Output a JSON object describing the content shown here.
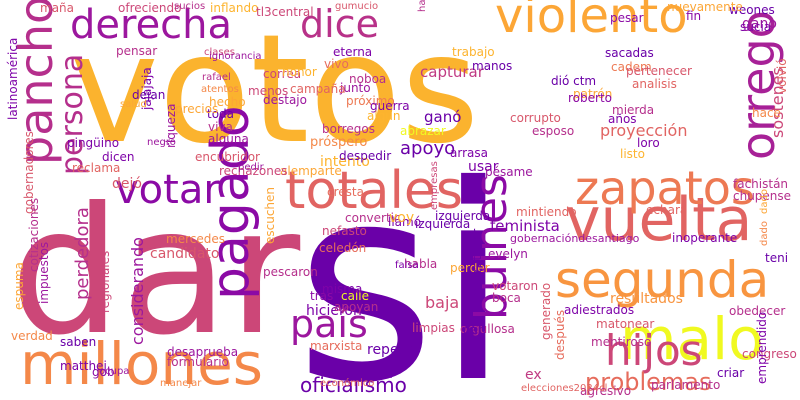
{
  "words": [
    {
      "text": "votos",
      "color": "#fbb32e"
    },
    {
      "text": "si",
      "color": "#6a00a8"
    },
    {
      "text": "dar",
      "color": "#cc4778"
    },
    {
      "text": "totales",
      "color": "#e16462"
    },
    {
      "text": "millones",
      "color": "#f48849"
    },
    {
      "text": "votar",
      "color": "#8b0aa5"
    },
    {
      "text": "violento",
      "color": "#fca636"
    },
    {
      "text": "derecha",
      "color": "#9c179e"
    },
    {
      "text": "dice",
      "color": "#b83289"
    },
    {
      "text": "vuelta",
      "color": "#e16462"
    },
    {
      "text": "segunda",
      "color": "#f89540"
    },
    {
      "text": "pancho",
      "color": "#b52f8c"
    },
    {
      "text": "zapatos",
      "color": "#ed7953"
    },
    {
      "text": "orrego",
      "color": "#a72197"
    },
    {
      "text": "malo",
      "color": "#f0f921"
    },
    {
      "text": "hijos",
      "color": "#cc4778"
    },
    {
      "text": "pagado",
      "color": "#8b0aa5"
    },
    {
      "text": "país",
      "color": "#9c179e"
    },
    {
      "text": "bulnes",
      "color": "#8b0aa5"
    },
    {
      "text": "persona",
      "color": "#b52f8c"
    },
    {
      "text": "problemas",
      "color": "#e66c5c"
    },
    {
      "text": "oficialismo",
      "color": "#6a00a8"
    },
    {
      "text": "perdedora",
      "color": "#b52f8c"
    },
    {
      "text": "feminista",
      "color": "#7e03a8"
    },
    {
      "text": "resultados",
      "color": "#f89540"
    },
    {
      "text": "candidato",
      "color": "#d8576b"
    },
    {
      "text": "proyección",
      "color": "#e16462"
    },
    {
      "text": "capturar",
      "color": "#c03a83"
    },
    {
      "text": "apoyo",
      "color": "#6a00a8"
    },
    {
      "text": "intento",
      "color": "#fdb42f"
    },
    {
      "text": "sostenes",
      "color": "#cc4778"
    },
    {
      "text": "considerando",
      "color": "#9c179e"
    },
    {
      "text": "ganó",
      "color": "#6a00a8"
    },
    {
      "text": "dejó",
      "color": "#d8576b"
    },
    {
      "text": "usar",
      "color": "#7e03a8"
    },
    {
      "text": "baja",
      "color": "#cc4778"
    },
    {
      "text": "tras",
      "color": "#8b0aa5"
    },
    {
      "text": "calle",
      "color": "#f0f921"
    },
    {
      "text": "hicieron",
      "color": "#7e03a8"
    },
    {
      "text": "apoyan",
      "color": "#b52f8c"
    },
    {
      "text": "repetir",
      "color": "#6a00a8"
    },
    {
      "text": "iba",
      "color": "#6a00a8"
    },
    {
      "text": "ex",
      "color": "#c03a83"
    },
    {
      "text": "agresivo",
      "color": "#b52f8c"
    },
    {
      "text": "congreso",
      "color": "#cc4778"
    },
    {
      "text": "obedecer",
      "color": "#b52f8c"
    },
    {
      "text": "mentiroso",
      "color": "#b52f8c"
    },
    {
      "text": "adiestrados",
      "color": "#7e03a8"
    },
    {
      "text": "matonear",
      "color": "#d8576b"
    },
    {
      "text": "orgullosa",
      "color": "#b52f8c"
    },
    {
      "text": "cresta",
      "color": "#e66c5c"
    },
    {
      "text": "alemparte",
      "color": "#fca636"
    },
    {
      "text": "pésame",
      "color": "#9c179e"
    },
    {
      "text": "arrasa",
      "color": "#7e03a8"
    },
    {
      "text": "esposo",
      "color": "#b52f8c"
    },
    {
      "text": "abrazar",
      "color": "#f0f921"
    },
    {
      "text": "borregos",
      "color": "#b52f8c"
    },
    {
      "text": "próspero",
      "color": "#f48849"
    },
    {
      "text": "despedir",
      "color": "#6a00a8"
    },
    {
      "text": "loro",
      "color": "#7e03a8"
    },
    {
      "text": "listo",
      "color": "#fdb42f"
    },
    {
      "text": "años",
      "color": "#7e03a8"
    },
    {
      "text": "hace",
      "color": "#f48849"
    },
    {
      "text": "mierda",
      "color": "#b52f8c"
    },
    {
      "text": "patrón",
      "color": "#fca636"
    },
    {
      "text": "roberto",
      "color": "#8b0aa5"
    },
    {
      "text": "dió ctm",
      "color": "#6a00a8"
    },
    {
      "text": "cadem",
      "color": "#ed7953"
    },
    {
      "text": "sacadas",
      "color": "#6a00a8"
    },
    {
      "text": "pertenecer",
      "color": "#d8576b"
    },
    {
      "text": "analisis",
      "color": "#e16462"
    },
    {
      "text": "weones",
      "color": "#6a00a8"
    },
    {
      "text": "fin",
      "color": "#8b0aa5"
    },
    {
      "text": "nuevamente",
      "color": "#fca636"
    },
    {
      "text": "gano",
      "color": "#9c179e"
    },
    {
      "text": "sucia",
      "color": "#7e03a8"
    },
    {
      "text": "pesar",
      "color": "#8b0aa5"
    },
    {
      "text": "hagan",
      "color": "#b52f8c"
    },
    {
      "text": "manos",
      "color": "#6a00a8"
    },
    {
      "text": "trabajo",
      "color": "#fdb42f"
    },
    {
      "text": "eterna",
      "color": "#7e03a8"
    },
    {
      "text": "vivo",
      "color": "#e66c5c"
    },
    {
      "text": "correa",
      "color": "#cc4778"
    },
    {
      "text": "noboa",
      "color": "#b52f8c"
    },
    {
      "text": "junto",
      "color": "#9c179e"
    },
    {
      "text": "próximo",
      "color": "#ed7953"
    },
    {
      "text": "destajo",
      "color": "#9c179e"
    },
    {
      "text": "menos",
      "color": "#cc4778"
    },
    {
      "text": "guerra",
      "color": "#7e03a8"
    },
    {
      "text": "algún",
      "color": "#fdb42f"
    },
    {
      "text": "corrupto",
      "color": "#d8576b"
    },
    {
      "text": "hecho",
      "color": "#fca636"
    },
    {
      "text": "viva",
      "color": "#b52f8c"
    },
    {
      "text": "alguna",
      "color": "#9c179e"
    },
    {
      "text": "toda",
      "color": "#6a00a8"
    },
    {
      "text": "riqueza",
      "color": "#9c179e"
    },
    {
      "text": "dicen",
      "color": "#7e03a8"
    },
    {
      "text": "encubridor",
      "color": "#d8576b"
    },
    {
      "text": "rechazones",
      "color": "#cc4778"
    },
    {
      "text": "pingüino",
      "color": "#7e03a8"
    },
    {
      "text": "reclama",
      "color": "#e16462"
    },
    {
      "text": "jajajaja",
      "color": "#7e03a8"
    },
    {
      "text": "dejan",
      "color": "#6a00a8"
    },
    {
      "text": "pensar",
      "color": "#b52f8c"
    },
    {
      "text": "mercedes",
      "color": "#f48849"
    },
    {
      "text": "pescaron",
      "color": "#b52f8c"
    },
    {
      "text": "convertir",
      "color": "#b52f8c"
    },
    {
      "text": "llamó",
      "color": "#7e03a8"
    },
    {
      "text": "izquierda",
      "color": "#6a00a8"
    },
    {
      "text": "nefasto",
      "color": "#cc4778"
    },
    {
      "text": "celedón",
      "color": "#e66c5c"
    },
    {
      "text": "misma",
      "color": "#7e03a8"
    },
    {
      "text": "habla",
      "color": "#b52f8c"
    },
    {
      "text": "perder",
      "color": "#fca636"
    },
    {
      "text": "voy",
      "color": "#fdb42f"
    },
    {
      "text": "evelyn",
      "color": "#9c179e"
    },
    {
      "text": "dan",
      "color": "#6a00a8"
    },
    {
      "text": "maltratador",
      "color": "#6a00a8"
    },
    {
      "text": "votaron",
      "color": "#cc4778"
    },
    {
      "text": "boca",
      "color": "#b52f8c"
    },
    {
      "text": "echará",
      "color": "#e16462"
    },
    {
      "text": "inoperante",
      "color": "#7e03a8"
    },
    {
      "text": "teni",
      "color": "#6a00a8"
    },
    {
      "text": "fachistán",
      "color": "#b52f8c"
    },
    {
      "text": "chupense",
      "color": "#b52f8c"
    },
    {
      "text": "impuestos",
      "color": "#9c179e"
    },
    {
      "text": "regionales",
      "color": "#cc4778"
    },
    {
      "text": "desaprueba",
      "color": "#9c179e"
    },
    {
      "text": "formulario",
      "color": "#b52f8c"
    },
    {
      "text": "marxista",
      "color": "#e66c5c"
    },
    {
      "text": "saben",
      "color": "#6a00a8"
    },
    {
      "text": "matthei",
      "color": "#7e03a8"
    },
    {
      "text": "gob",
      "color": "#8b0aa5"
    },
    {
      "text": "manejar",
      "color": "#f48849"
    },
    {
      "text": "limpias",
      "color": "#cc4778"
    },
    {
      "text": "izquierda",
      "color": "#6a00a8"
    },
    {
      "text": "gobernacióndesantiago",
      "color": "#9c179e"
    },
    {
      "text": "mintiendo",
      "color": "#e16462"
    },
    {
      "text": "latinoamérica",
      "color": "#7e03a8"
    },
    {
      "text": "maña",
      "color": "#d8576b"
    },
    {
      "text": "ofreciendo",
      "color": "#cc4778"
    },
    {
      "text": "inflando",
      "color": "#fdb42f"
    },
    {
      "text": "gobernadores",
      "color": "#d8576b"
    },
    {
      "text": "cotizaciones",
      "color": "#b52f8c"
    },
    {
      "text": "espuma",
      "color": "#fca636"
    },
    {
      "text": "verdad",
      "color": "#f48849"
    },
    {
      "text": "sucios",
      "color": "#b52f8c"
    },
    {
      "text": "clases",
      "color": "#cc4778"
    },
    {
      "text": "rafael",
      "color": "#b52f8c"
    },
    {
      "text": "atentos",
      "color": "#f48849"
    },
    {
      "text": "empresas",
      "color": "#cc4778"
    },
    {
      "text": "emprendido",
      "color": "#7e03a8"
    },
    {
      "text": "volvió",
      "color": "#e16462"
    },
    {
      "text": "parlamento",
      "color": "#b52f8c"
    },
    {
      "text": "después",
      "color": "#e66c5c"
    },
    {
      "text": "generado",
      "color": "#d8576b"
    },
    {
      "text": "criar",
      "color": "#6a00a8"
    },
    {
      "text": "salud",
      "color": "#fca636"
    },
    {
      "text": "negro",
      "color": "#9c179e"
    },
    {
      "text": "pedir",
      "color": "#9c179e"
    },
    {
      "text": "precios",
      "color": "#fca636"
    },
    {
      "text": "escuchen",
      "color": "#fca636"
    },
    {
      "text": "honor",
      "color": "#fdb42f"
    },
    {
      "text": "campaña",
      "color": "#e16462"
    },
    {
      "text": "dado",
      "color": "#f48849"
    },
    {
      "text": "dado",
      "color": "#fca636"
    },
    {
      "text": "falsa",
      "color": "#7e03a8"
    },
    {
      "text": "tl3central",
      "color": "#cc4778"
    },
    {
      "text": "gumucio",
      "color": "#d8576b"
    },
    {
      "text": "ignorancia",
      "color": "#9c179e"
    },
    {
      "text": "elecciones2024cl",
      "color": "#e16462"
    },
    {
      "text": "económico",
      "color": "#e66c5c"
    },
    {
      "text": "ocupa",
      "color": "#9c179e"
    }
  ]
}
